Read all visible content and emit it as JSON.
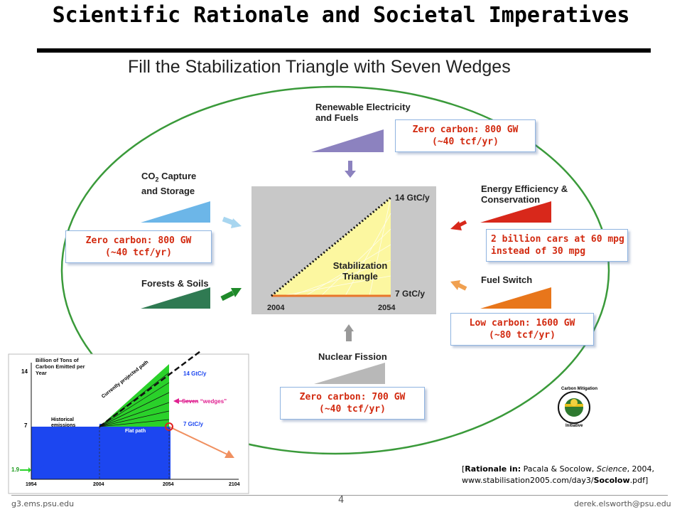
{
  "title": "Scientific Rationale and Societal Imperatives",
  "subtitle": "Fill the Stabilization Triangle with Seven Wedges",
  "wedges": {
    "renewable": "Renewable Electricity",
    "renewable_2": "and Fuels",
    "co2_a": "CO",
    "co2_sub": "2",
    "co2_b": " Capture",
    "co2_2": "and Storage",
    "efficiency": "Energy Efficiency &",
    "efficiency_2": "Conservation",
    "forests": "Forests & Soils",
    "fuel_switch": "Fuel Switch",
    "nuclear": "Nuclear Fission"
  },
  "triangle": {
    "top_label": "14 GtC/y",
    "bottom_label": "7 GtC/y",
    "center_1": "Stabilization",
    "center_2": "Triangle",
    "x_start": "2004",
    "x_end": "2054"
  },
  "callouts": {
    "renewable_1": "Zero carbon: 800 GW",
    "renewable_2": "(~40 tcf/yr)",
    "co2_1": "Zero carbon: 800 GW",
    "co2_2": "(~40 tcf/yr)",
    "efficiency_1": "2 billion cars at 60 mpg",
    "efficiency_2": "instead of 30 mpg",
    "fuel_1": "Low carbon: 1600 GW",
    "fuel_2": "(~80 tcf/yr)",
    "nuclear_1": "Zero carbon: 700 GW",
    "nuclear_2": "(~40 tcf/yr)"
  },
  "inset": {
    "ylabel_1": "Billion of Tons of",
    "ylabel_2": "Carbon Emitted per",
    "ylabel_3": "Year",
    "y14": "14",
    "y7": "7",
    "y19": "1.9",
    "x1954": "1954",
    "x2004": "2004",
    "x2054": "2054",
    "x2104": "2104",
    "projected": "Currently projected path",
    "historical_1": "Historical",
    "historical_2": "emissions",
    "flat": "Flat path",
    "top": "14 GtC/y",
    "wedges": "Seven “wedges”",
    "bottom": "7 GtC/y"
  },
  "logo": {
    "top": "Carbon Mitigation",
    "bottom": "Initiative"
  },
  "citation": {
    "prefix": "[",
    "bold": "Rationale in:",
    "authors": " Pacala & Socolow, ",
    "journal": "Science",
    "year": ", 2004,",
    "url_prefix": "www.stabilisation2005.com/day3/",
    "url_bold": "Socolow",
    "url_suffix": ".pdf]"
  },
  "footer": {
    "left": "g3.ems.psu.edu",
    "page": "4",
    "right": "derek.elsworth@psu.edu"
  },
  "colors": {
    "renewable": "#8c82bf",
    "co2": "#6cb6e8",
    "efficiency": "#d8281b",
    "forests": "#2f7a52",
    "fuel_switch": "#e8761b",
    "nuclear": "#b8b8b8",
    "callout_text": "#d22a10",
    "ellipse": "#3a9a3a"
  }
}
